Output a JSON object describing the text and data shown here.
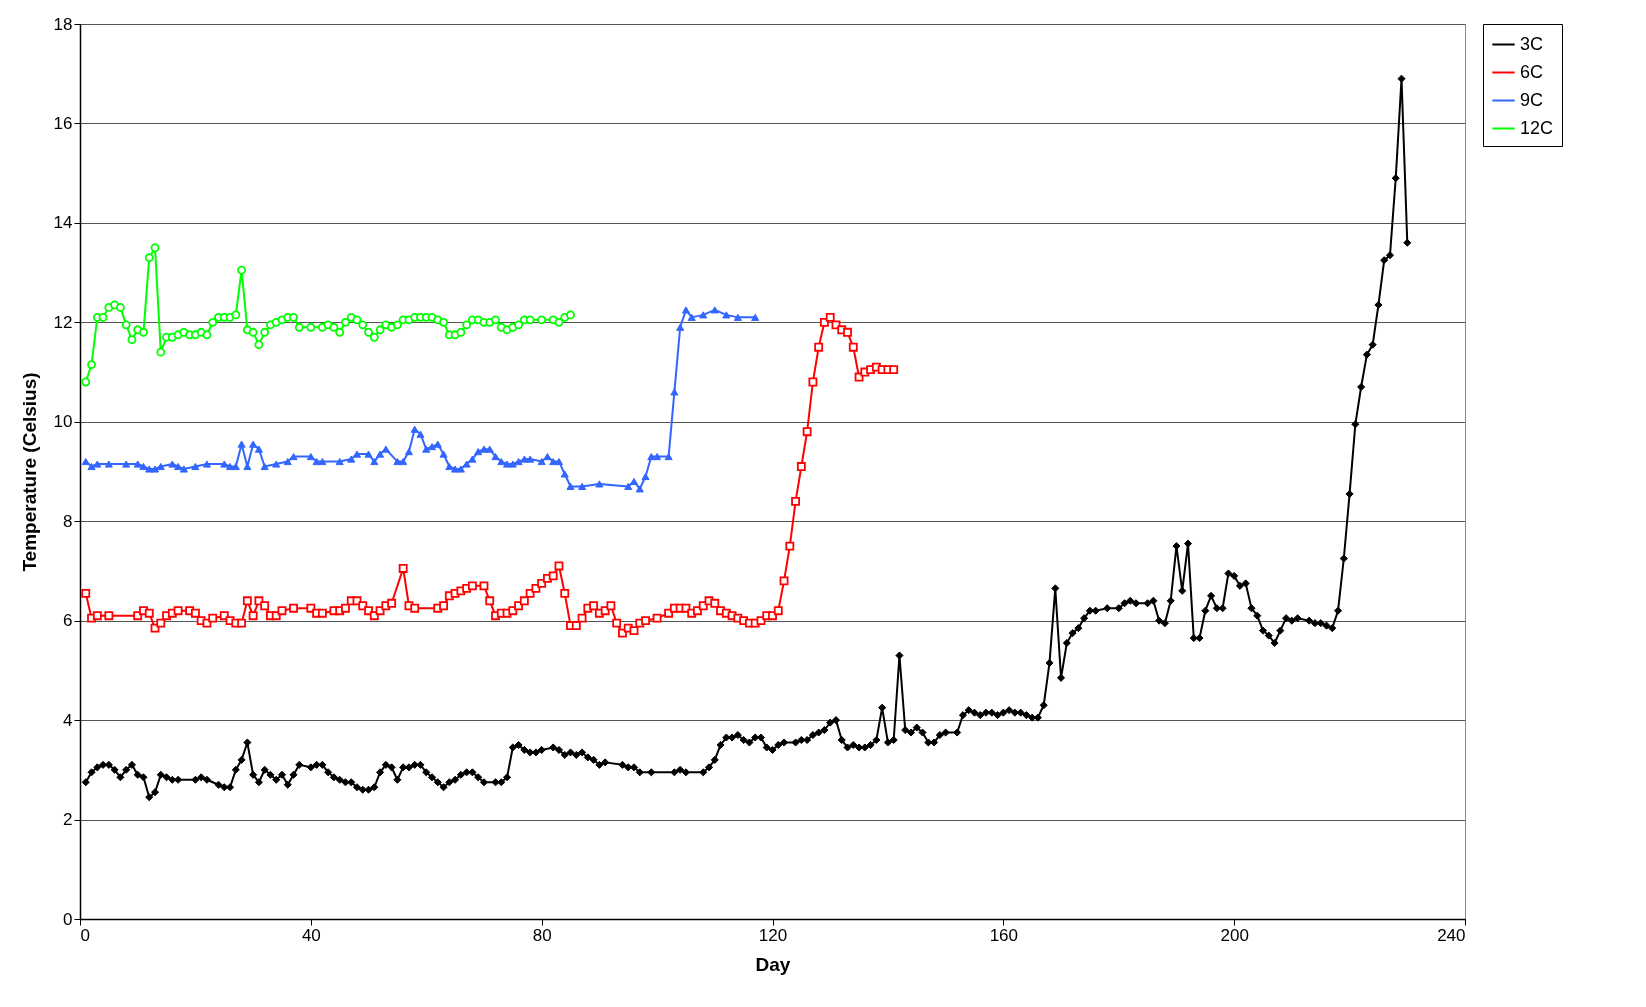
{
  "chart_data": {
    "type": "line",
    "xlabel": "Day",
    "ylabel": "Temperature (Celsius)",
    "xlim": [
      0,
      240
    ],
    "xticks": [
      0,
      40,
      80,
      120,
      160,
      200,
      240
    ],
    "ylim": [
      0,
      18
    ],
    "yticks": [
      0,
      2,
      4,
      6,
      8,
      10,
      12,
      14,
      16,
      18
    ],
    "grid": "y",
    "legend": "right",
    "line_style": "solid",
    "series": [
      {
        "name": "3C",
        "color": "#000000",
        "marker": "diamond",
        "x": [
          1,
          2,
          3,
          4,
          5,
          6,
          7,
          8,
          9,
          10,
          11,
          12,
          13,
          14,
          15,
          16,
          17,
          20,
          21,
          22,
          24,
          25,
          26,
          27,
          28,
          29,
          30,
          31,
          32,
          33,
          34,
          35,
          36,
          37,
          38,
          40,
          41,
          42,
          43,
          44,
          45,
          46,
          47,
          48,
          49,
          50,
          51,
          52,
          53,
          54,
          55,
          56,
          57,
          58,
          59,
          60,
          61,
          62,
          63,
          64,
          65,
          66,
          67,
          68,
          69,
          70,
          72,
          73,
          74,
          75,
          76,
          77,
          78,
          79,
          80,
          82,
          83,
          84,
          85,
          86,
          87,
          88,
          89,
          90,
          91,
          94,
          95,
          96,
          97,
          99,
          103,
          104,
          105,
          108,
          109,
          110,
          111,
          112,
          113,
          114,
          115,
          116,
          117,
          118,
          119,
          120,
          121,
          122,
          124,
          125,
          126,
          127,
          128,
          129,
          130,
          131,
          132,
          133,
          134,
          135,
          136,
          137,
          138,
          139,
          140,
          141,
          142,
          143,
          144,
          145,
          146,
          147,
          148,
          149,
          150,
          152,
          153,
          154,
          155,
          156,
          157,
          158,
          159,
          160,
          161,
          162,
          163,
          164,
          165,
          166,
          167,
          168,
          169,
          170,
          171,
          172,
          173,
          174,
          175,
          176,
          178,
          180,
          181,
          182,
          183,
          185,
          186,
          187,
          188,
          189,
          190,
          191,
          192,
          193,
          194,
          195,
          196,
          197,
          198,
          199,
          200,
          201,
          202,
          203,
          204,
          205,
          206,
          207,
          208,
          209,
          210,
          211,
          213,
          214,
          215,
          216,
          217,
          218,
          219,
          220,
          221,
          222,
          223,
          224,
          225,
          226,
          227,
          228,
          229,
          230
        ],
        "values": [
          2.75,
          2.95,
          3.05,
          3.1,
          3.1,
          3.0,
          2.85,
          3.0,
          3.1,
          2.9,
          2.85,
          2.45,
          2.55,
          2.9,
          2.85,
          2.8,
          2.8,
          2.8,
          2.85,
          2.8,
          2.7,
          2.65,
          2.65,
          3.0,
          3.2,
          3.55,
          2.9,
          2.75,
          3.0,
          2.9,
          2.8,
          2.9,
          2.7,
          2.9,
          3.1,
          3.05,
          3.1,
          3.1,
          2.95,
          2.85,
          2.8,
          2.75,
          2.75,
          2.65,
          2.6,
          2.6,
          2.65,
          2.95,
          3.1,
          3.05,
          2.8,
          3.05,
          3.05,
          3.1,
          3.1,
          2.95,
          2.85,
          2.75,
          2.65,
          2.75,
          2.8,
          2.9,
          2.95,
          2.95,
          2.85,
          2.75,
          2.75,
          2.75,
          2.85,
          3.45,
          3.5,
          3.4,
          3.35,
          3.35,
          3.4,
          3.45,
          3.4,
          3.3,
          3.35,
          3.3,
          3.35,
          3.25,
          3.2,
          3.1,
          3.15,
          3.1,
          3.05,
          3.05,
          2.95,
          2.95,
          2.95,
          3.0,
          2.95,
          2.95,
          3.05,
          3.2,
          3.5,
          3.65,
          3.65,
          3.7,
          3.6,
          3.55,
          3.65,
          3.65,
          3.45,
          3.4,
          3.5,
          3.55,
          3.55,
          3.6,
          3.6,
          3.7,
          3.75,
          3.8,
          3.95,
          4.0,
          3.6,
          3.45,
          3.5,
          3.45,
          3.45,
          3.5,
          3.6,
          4.25,
          3.55,
          3.6,
          5.3,
          3.8,
          3.75,
          3.85,
          3.75,
          3.55,
          3.55,
          3.7,
          3.75,
          3.75,
          4.1,
          4.2,
          4.15,
          4.1,
          4.15,
          4.15,
          4.1,
          4.15,
          4.2,
          4.15,
          4.15,
          4.1,
          4.05,
          4.05,
          4.3,
          5.15,
          6.65,
          4.85,
          5.55,
          5.75,
          5.85,
          6.05,
          6.2,
          6.2,
          6.25,
          6.25,
          6.35,
          6.4,
          6.35,
          6.35,
          6.4,
          6.0,
          5.95,
          6.4,
          7.5,
          6.6,
          7.55,
          5.65,
          5.65,
          6.2,
          6.5,
          6.25,
          6.25,
          6.95,
          6.9,
          6.7,
          6.75,
          6.25,
          6.1,
          5.8,
          5.7,
          5.55,
          5.8,
          6.05,
          6.0,
          6.05,
          6.0,
          5.95,
          5.95,
          5.9,
          5.85,
          6.2,
          7.25,
          8.55,
          9.95,
          10.7,
          11.35,
          11.55,
          12.35,
          13.25,
          13.35,
          14.9,
          16.9,
          13.6
        ]
      },
      {
        "name": "6C",
        "color": "#ff0000",
        "marker": "square",
        "x": [
          1,
          2,
          3,
          5,
          10,
          11,
          12,
          13,
          14,
          15,
          16,
          17,
          19,
          20,
          21,
          22,
          23,
          25,
          26,
          27,
          28,
          29,
          30,
          31,
          32,
          33,
          34,
          35,
          37,
          40,
          41,
          42,
          44,
          45,
          46,
          47,
          48,
          49,
          50,
          51,
          52,
          53,
          54,
          56,
          57,
          58,
          62,
          63,
          64,
          65,
          66,
          67,
          68,
          70,
          71,
          72,
          73,
          74,
          75,
          76,
          77,
          78,
          79,
          80,
          81,
          82,
          83,
          84,
          85,
          86,
          87,
          88,
          89,
          90,
          91,
          92,
          93,
          94,
          95,
          96,
          97,
          98,
          100,
          102,
          103,
          104,
          105,
          106,
          107,
          108,
          109,
          110,
          111,
          112,
          113,
          114,
          115,
          116,
          117,
          118,
          119,
          120,
          121,
          122,
          123,
          124,
          125,
          126,
          127,
          128,
          129,
          130,
          131,
          132,
          133,
          134,
          135,
          136,
          137,
          138,
          139,
          140,
          141
        ],
        "values": [
          6.55,
          6.05,
          6.1,
          6.1,
          6.1,
          6.2,
          6.15,
          5.85,
          5.95,
          6.1,
          6.15,
          6.2,
          6.2,
          6.15,
          6.0,
          5.95,
          6.05,
          6.1,
          6.0,
          5.95,
          5.95,
          6.4,
          6.1,
          6.4,
          6.3,
          6.1,
          6.1,
          6.2,
          6.25,
          6.25,
          6.15,
          6.15,
          6.2,
          6.2,
          6.25,
          6.4,
          6.4,
          6.3,
          6.2,
          6.1,
          6.2,
          6.3,
          6.35,
          7.05,
          6.3,
          6.25,
          6.25,
          6.3,
          6.5,
          6.55,
          6.6,
          6.65,
          6.7,
          6.7,
          6.4,
          6.1,
          6.15,
          6.15,
          6.2,
          6.3,
          6.4,
          6.55,
          6.65,
          6.75,
          6.85,
          6.9,
          7.1,
          6.55,
          5.9,
          5.9,
          6.05,
          6.25,
          6.3,
          6.15,
          6.2,
          6.3,
          5.95,
          5.75,
          5.85,
          5.8,
          5.95,
          6.0,
          6.05,
          6.15,
          6.25,
          6.25,
          6.25,
          6.15,
          6.2,
          6.3,
          6.4,
          6.35,
          6.2,
          6.15,
          6.1,
          6.05,
          6.0,
          5.95,
          5.95,
          6.0,
          6.1,
          6.1,
          6.2,
          6.8,
          7.5,
          8.4,
          9.1,
          9.8,
          10.8,
          11.5,
          12.0,
          12.1,
          11.95,
          11.85,
          11.8,
          11.5,
          10.9,
          11.0,
          11.05,
          11.1,
          11.05,
          11.05,
          11.05
        ]
      },
      {
        "name": "9C",
        "color": "#3366ff",
        "marker": "triangle",
        "x": [
          1,
          2,
          3,
          5,
          8,
          10,
          11,
          12,
          13,
          14,
          16,
          17,
          18,
          20,
          22,
          25,
          26,
          27,
          28,
          29,
          30,
          31,
          32,
          34,
          36,
          37,
          40,
          41,
          42,
          45,
          47,
          48,
          50,
          51,
          52,
          53,
          55,
          56,
          57,
          58,
          59,
          60,
          61,
          62,
          63,
          64,
          65,
          66,
          67,
          68,
          69,
          70,
          71,
          72,
          73,
          74,
          75,
          76,
          77,
          78,
          80,
          81,
          82,
          83,
          84,
          85,
          87,
          90,
          95,
          96,
          97,
          98,
          99,
          100,
          102,
          103,
          104,
          105,
          106,
          108,
          110,
          112,
          114,
          117
        ],
        "values": [
          9.2,
          9.1,
          9.15,
          9.15,
          9.15,
          9.15,
          9.1,
          9.05,
          9.05,
          9.1,
          9.15,
          9.1,
          9.05,
          9.1,
          9.15,
          9.15,
          9.1,
          9.1,
          9.55,
          9.1,
          9.55,
          9.45,
          9.1,
          9.15,
          9.2,
          9.3,
          9.3,
          9.2,
          9.2,
          9.2,
          9.25,
          9.35,
          9.35,
          9.2,
          9.35,
          9.45,
          9.2,
          9.2,
          9.4,
          9.85,
          9.75,
          9.45,
          9.5,
          9.55,
          9.35,
          9.1,
          9.05,
          9.05,
          9.15,
          9.25,
          9.4,
          9.45,
          9.45,
          9.3,
          9.2,
          9.15,
          9.15,
          9.2,
          9.25,
          9.25,
          9.2,
          9.3,
          9.2,
          9.2,
          8.95,
          8.7,
          8.7,
          8.75,
          8.7,
          8.8,
          8.65,
          8.9,
          9.3,
          9.3,
          9.3,
          10.6,
          11.9,
          12.25,
          12.1,
          12.15,
          12.25,
          12.15,
          12.1,
          12.1
        ]
      },
      {
        "name": "12C",
        "color": "#00ff00",
        "marker": "circle",
        "x": [
          1,
          2,
          3,
          4,
          5,
          6,
          7,
          8,
          9,
          10,
          11,
          12,
          13,
          14,
          15,
          16,
          17,
          18,
          19,
          20,
          21,
          22,
          23,
          24,
          25,
          26,
          27,
          28,
          29,
          30,
          31,
          32,
          33,
          34,
          35,
          36,
          37,
          38,
          40,
          42,
          43,
          44,
          45,
          46,
          47,
          48,
          49,
          50,
          51,
          52,
          53,
          54,
          55,
          56,
          57,
          58,
          59,
          60,
          61,
          62,
          63,
          64,
          65,
          66,
          67,
          68,
          69,
          70,
          71,
          72,
          73,
          74,
          75,
          76,
          77,
          78,
          80,
          82,
          83,
          84,
          85
        ],
        "values": [
          10.8,
          11.15,
          12.1,
          12.1,
          12.3,
          12.35,
          12.3,
          11.95,
          11.65,
          11.85,
          11.8,
          13.3,
          13.5,
          11.4,
          11.7,
          11.7,
          11.75,
          11.8,
          11.75,
          11.75,
          11.8,
          11.75,
          12.0,
          12.1,
          12.1,
          12.1,
          12.15,
          13.05,
          11.85,
          11.8,
          11.55,
          11.8,
          11.95,
          12.0,
          12.05,
          12.1,
          12.1,
          11.9,
          11.9,
          11.9,
          11.95,
          11.9,
          11.8,
          12.0,
          12.1,
          12.05,
          11.95,
          11.8,
          11.7,
          11.85,
          11.95,
          11.9,
          11.95,
          12.05,
          12.05,
          12.1,
          12.1,
          12.1,
          12.1,
          12.05,
          12.0,
          11.75,
          11.75,
          11.8,
          11.95,
          12.05,
          12.05,
          12.0,
          12.0,
          12.05,
          11.9,
          11.85,
          11.9,
          11.95,
          12.05,
          12.05,
          12.05,
          12.05,
          12.0,
          12.1,
          12.15
        ]
      }
    ]
  }
}
